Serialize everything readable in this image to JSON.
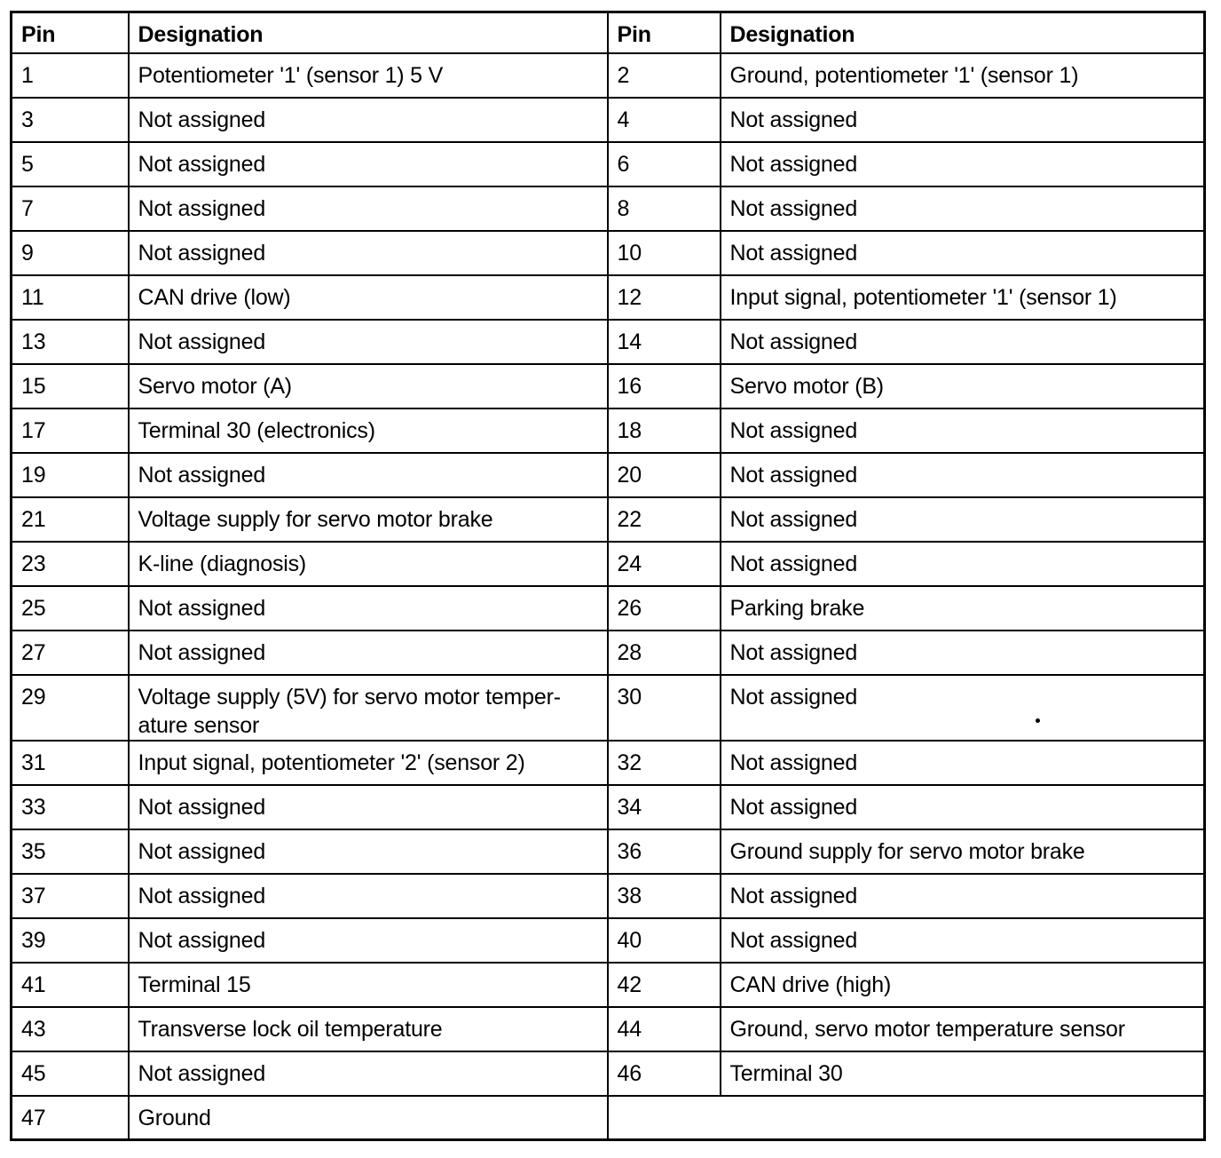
{
  "colors": {
    "border": "#000000",
    "text": "#000000",
    "background": "#ffffff"
  },
  "table": {
    "headers": [
      {
        "label": "Pin"
      },
      {
        "label": "Designation"
      },
      {
        "label": "Pin"
      },
      {
        "label": "Designation"
      }
    ],
    "rows": [
      {
        "pin_left": "1",
        "designation_left": "Potentiometer '1' (sensor 1) 5 V",
        "pin_right": "2",
        "designation_right": "Ground, potentiometer '1' (sensor 1)"
      },
      {
        "pin_left": "3",
        "designation_left": "Not assigned",
        "pin_right": "4",
        "designation_right": "Not assigned"
      },
      {
        "pin_left": "5",
        "designation_left": "Not assigned",
        "pin_right": "6",
        "designation_right": "Not assigned"
      },
      {
        "pin_left": "7",
        "designation_left": "Not assigned",
        "pin_right": "8",
        "designation_right": "Not assigned"
      },
      {
        "pin_left": "9",
        "designation_left": "Not assigned",
        "pin_right": "10",
        "designation_right": "Not assigned"
      },
      {
        "pin_left": "11",
        "designation_left": "CAN drive (low)",
        "pin_right": "12",
        "designation_right": "Input signal, potentiometer '1' (sensor 1)"
      },
      {
        "pin_left": "13",
        "designation_left": "Not assigned",
        "pin_right": "14",
        "designation_right": "Not assigned"
      },
      {
        "pin_left": "15",
        "designation_left": "Servo motor (A)",
        "pin_right": "16",
        "designation_right": "Servo motor (B)"
      },
      {
        "pin_left": "17",
        "designation_left": "Terminal 30 (electronics)",
        "pin_right": "18",
        "designation_right": "Not assigned"
      },
      {
        "pin_left": "19",
        "designation_left": "Not assigned",
        "pin_right": "20",
        "designation_right": "Not assigned"
      },
      {
        "pin_left": "21",
        "designation_left": "Voltage supply for servo motor brake",
        "pin_right": "22",
        "designation_right": "Not assigned"
      },
      {
        "pin_left": "23",
        "designation_left": "K-line (diagnosis)",
        "pin_right": "24",
        "designation_right": "Not assigned"
      },
      {
        "pin_left": "25",
        "designation_left": "Not assigned",
        "pin_right": "26",
        "designation_right": "Parking brake"
      },
      {
        "pin_left": "27",
        "designation_left": "Not assigned",
        "pin_right": "28",
        "designation_right": "Not assigned"
      },
      {
        "pin_left": "29",
        "designation_left": "Voltage supply (5V) for servo motor temper­ature sensor",
        "pin_right": "30",
        "designation_right": "Not assigned",
        "speck": true
      },
      {
        "pin_left": "31",
        "designation_left": "Input signal, potentiometer '2' (sensor 2)",
        "pin_right": "32",
        "designation_right": "Not assigned"
      },
      {
        "pin_left": "33",
        "designation_left": "Not assigned",
        "pin_right": "34",
        "designation_right": "Not assigned"
      },
      {
        "pin_left": "35",
        "designation_left": "Not assigned",
        "pin_right": "36",
        "designation_right": "Ground supply for servo motor brake"
      },
      {
        "pin_left": "37",
        "designation_left": "Not assigned",
        "pin_right": "38",
        "designation_right": "Not assigned"
      },
      {
        "pin_left": "39",
        "designation_left": "Not assigned",
        "pin_right": "40",
        "designation_right": "Not assigned"
      },
      {
        "pin_left": "41",
        "designation_left": "Terminal 15",
        "pin_right": "42",
        "designation_right": "CAN drive (high)"
      },
      {
        "pin_left": "43",
        "designation_left": "Transverse lock oil temperature",
        "pin_right": "44",
        "designation_right": "Ground, servo motor temperature sensor"
      },
      {
        "pin_left": "45",
        "designation_left": "Not assigned",
        "pin_right": "46",
        "designation_right": "Terminal 30"
      },
      {
        "pin_left": "47",
        "designation_left": "Ground",
        "right_merged": true
      }
    ]
  }
}
